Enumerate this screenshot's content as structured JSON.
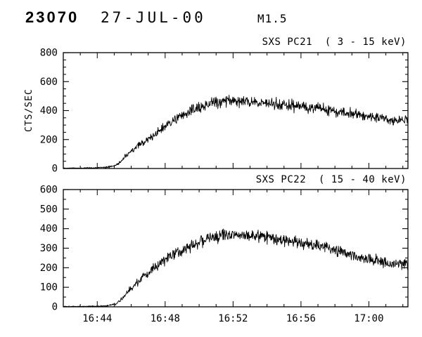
{
  "header": {
    "event_number": "23070",
    "date": "27-JUL-00",
    "flare_class": "M1.5"
  },
  "chart_data": [
    {
      "type": "line",
      "id": "pc21",
      "title": "SXS PC21  ( 3 - 15 keV)",
      "ylabel": "CTS/SEC",
      "ylim": [
        0,
        800
      ],
      "yticks": [
        0,
        200,
        400,
        600,
        800
      ],
      "y_minor_step": 50,
      "xlim_minutes": [
        1002,
        1022.3
      ],
      "xticks": [
        {
          "minute": 1004,
          "label": "16:44"
        },
        {
          "minute": 1008,
          "label": "16:48"
        },
        {
          "minute": 1012,
          "label": "16:52"
        },
        {
          "minute": 1016,
          "label": "16:56"
        },
        {
          "minute": 1020,
          "label": "17:00"
        }
      ],
      "x_minor_step": 1,
      "show_x_labels": false,
      "grid": false,
      "noise_scale": 0.9,
      "noise_seed": 42,
      "envelope_t": [
        1002,
        1003,
        1004,
        1004.5,
        1005,
        1005.25,
        1005.5,
        1005.75,
        1006,
        1006.5,
        1007,
        1007.5,
        1008,
        1008.5,
        1009,
        1009.5,
        1010,
        1010.5,
        1011,
        1011.5,
        1012,
        1012.5,
        1013,
        1014,
        1015,
        1016,
        1017,
        1018,
        1019,
        1020,
        1020.5,
        1021,
        1021.5,
        1022,
        1022.3
      ],
      "envelope_v": [
        3,
        3,
        5,
        8,
        18,
        35,
        60,
        90,
        120,
        165,
        200,
        245,
        290,
        330,
        365,
        395,
        420,
        445,
        460,
        468,
        470,
        466,
        460,
        450,
        442,
        430,
        414,
        396,
        378,
        362,
        352,
        344,
        322,
        338,
        330
      ]
    },
    {
      "type": "line",
      "id": "pc22",
      "title": "SXS PC22  ( 15 - 40 keV)",
      "ylabel": "",
      "ylim": [
        0,
        600
      ],
      "yticks": [
        0,
        100,
        200,
        300,
        400,
        500,
        600
      ],
      "y_minor_step": 50,
      "xlim_minutes": [
        1002,
        1022.3
      ],
      "xticks": [
        {
          "minute": 1004,
          "label": "16:44"
        },
        {
          "minute": 1008,
          "label": "16:48"
        },
        {
          "minute": 1012,
          "label": "16:52"
        },
        {
          "minute": 1016,
          "label": "16:56"
        },
        {
          "minute": 1020,
          "label": "17:00"
        }
      ],
      "x_minor_step": 1,
      "show_x_labels": true,
      "grid": false,
      "noise_scale": 0.85,
      "noise_seed": 1337,
      "envelope_t": [
        1002,
        1003,
        1004,
        1004.5,
        1005,
        1005.25,
        1005.5,
        1005.75,
        1006,
        1006.5,
        1007,
        1007.5,
        1008,
        1008.5,
        1009,
        1009.5,
        1010,
        1010.5,
        1011,
        1011.5,
        1012,
        1012.5,
        1013,
        1014,
        1015,
        1016,
        1017,
        1018,
        1019,
        1020,
        1020.5,
        1021,
        1021.5,
        1022,
        1022.3
      ],
      "envelope_v": [
        2,
        2,
        3,
        5,
        12,
        25,
        45,
        70,
        95,
        138,
        170,
        208,
        242,
        272,
        295,
        312,
        330,
        346,
        362,
        374,
        378,
        374,
        368,
        357,
        345,
        330,
        312,
        292,
        268,
        246,
        236,
        228,
        214,
        224,
        218
      ]
    }
  ]
}
